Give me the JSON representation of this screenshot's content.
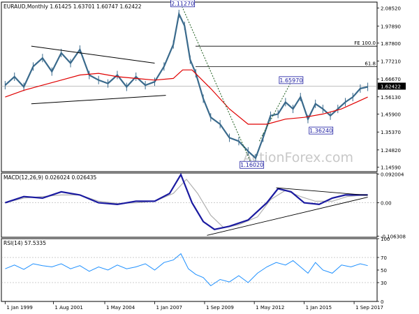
{
  "chart_data": {
    "type": "line",
    "panels": {
      "price": {
        "title": "EURAUD,Monthly  1.61425 1.63701 1.60747 1.62422",
        "ylim": [
          1.12,
          2.12
        ],
        "yticks": [
          "2.08520",
          "1.97890",
          "1.87800",
          "1.77210",
          "1.66670",
          "1.56130",
          "1.45900",
          "1.35370",
          "1.24820",
          "1.14590"
        ],
        "ytick_values": [
          2.0852,
          1.9789,
          1.878,
          1.7721,
          1.6667,
          1.5613,
          1.459,
          1.3537,
          1.2482,
          1.1459
        ],
        "current_price_label": "1.62422",
        "current_price": 1.62422,
        "fib_levels": [
          {
            "label": "FE 100.0",
            "value": 1.86
          },
          {
            "label": "61.8",
            "value": 1.74
          }
        ],
        "annotations": [
          {
            "label": "2.11270",
            "x": 2008.5,
            "y": 2.1127
          },
          {
            "label": "1.65970",
            "x": 2014.3,
            "y": 1.6597
          },
          {
            "label": "1.36240",
            "x": 2015.9,
            "y": 1.3624
          },
          {
            "label": "1.16020",
            "x": 2012.2,
            "y": 1.1602
          }
        ],
        "close_series": {
          "x": [
            1999.0,
            1999.5,
            2000.0,
            2000.5,
            2001.0,
            2001.5,
            2002.0,
            2002.5,
            2003.0,
            2003.5,
            2004.0,
            2004.5,
            2005.0,
            2005.5,
            2006.0,
            2006.5,
            2007.0,
            2007.5,
            2008.0,
            2008.3,
            2008.6,
            2008.9,
            2009.2,
            2009.6,
            2010.0,
            2010.5,
            2011.0,
            2011.5,
            2012.0,
            2012.4,
            2012.8,
            2013.2,
            2013.6,
            2014.0,
            2014.4,
            2014.8,
            2015.2,
            2015.6,
            2016.0,
            2016.4,
            2016.8,
            2017.2,
            2017.6,
            2018.0,
            2018.4
          ],
          "y": [
            1.63,
            1.68,
            1.62,
            1.74,
            1.79,
            1.71,
            1.82,
            1.76,
            1.84,
            1.69,
            1.66,
            1.64,
            1.69,
            1.62,
            1.68,
            1.63,
            1.65,
            1.74,
            1.87,
            2.05,
            1.98,
            1.78,
            1.7,
            1.55,
            1.44,
            1.4,
            1.32,
            1.3,
            1.24,
            1.2,
            1.32,
            1.45,
            1.46,
            1.53,
            1.49,
            1.56,
            1.43,
            1.52,
            1.49,
            1.45,
            1.49,
            1.53,
            1.56,
            1.61,
            1.62
          ]
        },
        "sma_series": {
          "x": [
            1999.0,
            2000.0,
            2001.0,
            2002.0,
            2003.0,
            2004.0,
            2005.0,
            2006.0,
            2007.0,
            2008.0,
            2008.5,
            2009.0,
            2010.0,
            2011.0,
            2012.0,
            2013.0,
            2014.0,
            2015.0,
            2016.0,
            2017.0,
            2018.4
          ],
          "y": [
            1.56,
            1.6,
            1.63,
            1.66,
            1.69,
            1.7,
            1.68,
            1.67,
            1.66,
            1.67,
            1.72,
            1.72,
            1.61,
            1.49,
            1.4,
            1.4,
            1.43,
            1.44,
            1.46,
            1.49,
            1.56
          ]
        },
        "trendlines": [
          {
            "x": [
              2000.4,
              2007.0
            ],
            "y": [
              1.86,
              1.76
            ]
          },
          {
            "x": [
              2000.4,
              2007.6
            ],
            "y": [
              1.52,
              1.57
            ]
          },
          {
            "x": [
              2008.4,
              2012.2
            ],
            "y": [
              2.11,
              1.16
            ],
            "style": "dashed"
          },
          {
            "x": [
              2012.6,
              2014.4
            ],
            "y": [
              1.3,
              1.67
            ],
            "style": "dashed"
          }
        ]
      },
      "macd": {
        "title": "MACD(12,26,9) 0.026024 0.026435",
        "ylim": [
          -0.11,
          0.095
        ],
        "yticks": [
          "0.092004",
          "0.00",
          "-0.106308"
        ],
        "ytick_values": [
          0.092004,
          0.0,
          -0.106308
        ],
        "macd_series": {
          "x": [
            1999.0,
            2000.0,
            2001.0,
            2002.0,
            2003.0,
            2004.0,
            2005.0,
            2006.0,
            2007.0,
            2007.8,
            2008.4,
            2009.0,
            2009.6,
            2010.2,
            2011.0,
            2012.0,
            2013.0,
            2013.6,
            2014.3,
            2015.0,
            2015.8,
            2016.5,
            2017.2,
            2018.0,
            2018.4
          ],
          "y": [
            0.0,
            0.02,
            0.015,
            0.035,
            0.025,
            0.0,
            -0.005,
            0.005,
            0.005,
            0.03,
            0.09,
            0.0,
            -0.06,
            -0.085,
            -0.075,
            -0.055,
            0.0,
            0.045,
            0.035,
            0.0,
            -0.005,
            0.015,
            0.025,
            0.025,
            0.025
          ]
        },
        "signal_series": {
          "x": [
            1999.0,
            2000.0,
            2001.0,
            2002.0,
            2003.0,
            2004.0,
            2005.0,
            2006.0,
            2007.0,
            2008.0,
            2008.7,
            2009.3,
            2010.0,
            2010.7,
            2011.5,
            2012.5,
            2013.2,
            2014.0,
            2014.8,
            2015.6,
            2016.5,
            2017.3,
            2018.4
          ],
          "y": [
            0.0,
            0.015,
            0.02,
            0.025,
            0.025,
            0.005,
            -0.002,
            0.0,
            0.005,
            0.03,
            0.075,
            0.03,
            -0.04,
            -0.08,
            -0.07,
            -0.045,
            0.01,
            0.04,
            0.02,
            0.005,
            0.005,
            0.02,
            0.026
          ]
        },
        "trendlines": [
          {
            "x": [
              2013.5,
              2018.4
            ],
            "y": [
              0.048,
              0.024
            ]
          },
          {
            "x": [
              2009.8,
              2018.4
            ],
            "y": [
              -0.104,
              0.018
            ]
          }
        ]
      },
      "rsi": {
        "title": "RSI(14) 57.5335",
        "ylim": [
          0,
          100
        ],
        "yticks": [
          "100",
          "70",
          "50",
          "30",
          "0"
        ],
        "ytick_values": [
          100,
          70,
          50,
          30,
          0
        ],
        "rsi_series": {
          "x": [
            1999.0,
            1999.5,
            2000.0,
            2000.5,
            2001.0,
            2001.5,
            2002.0,
            2002.5,
            2003.0,
            2003.5,
            2004.0,
            2004.5,
            2005.0,
            2005.5,
            2006.0,
            2006.5,
            2007.0,
            2007.5,
            2008.0,
            2008.4,
            2008.8,
            2009.2,
            2009.6,
            2010.0,
            2010.5,
            2011.0,
            2011.5,
            2012.0,
            2012.5,
            2013.0,
            2013.5,
            2014.0,
            2014.4,
            2014.8,
            2015.2,
            2015.6,
            2016.0,
            2016.5,
            2017.0,
            2017.5,
            2018.0,
            2018.4
          ],
          "y": [
            52,
            58,
            51,
            60,
            57,
            55,
            60,
            52,
            57,
            48,
            55,
            50,
            58,
            52,
            55,
            60,
            50,
            62,
            66,
            76,
            52,
            43,
            38,
            25,
            35,
            31,
            41,
            30,
            45,
            55,
            62,
            58,
            65,
            55,
            45,
            62,
            50,
            45,
            58,
            55,
            60,
            57
          ]
        }
      }
    },
    "x_axis": {
      "xlim": [
        1998.8,
        2018.9
      ],
      "tick_labels": [
        "1 Jan 1999",
        "1 Aug 2001",
        "1 May 2004",
        "1 Jan 2007",
        "1 Sep 2009",
        "1 May 2012",
        "1 Jan 2015",
        "1 Sep 2017"
      ],
      "tick_values": [
        1999.0,
        2001.58,
        2004.33,
        2007.0,
        2009.67,
        2012.33,
        2015.0,
        2017.67
      ]
    },
    "watermark": "ActionForex.com"
  }
}
